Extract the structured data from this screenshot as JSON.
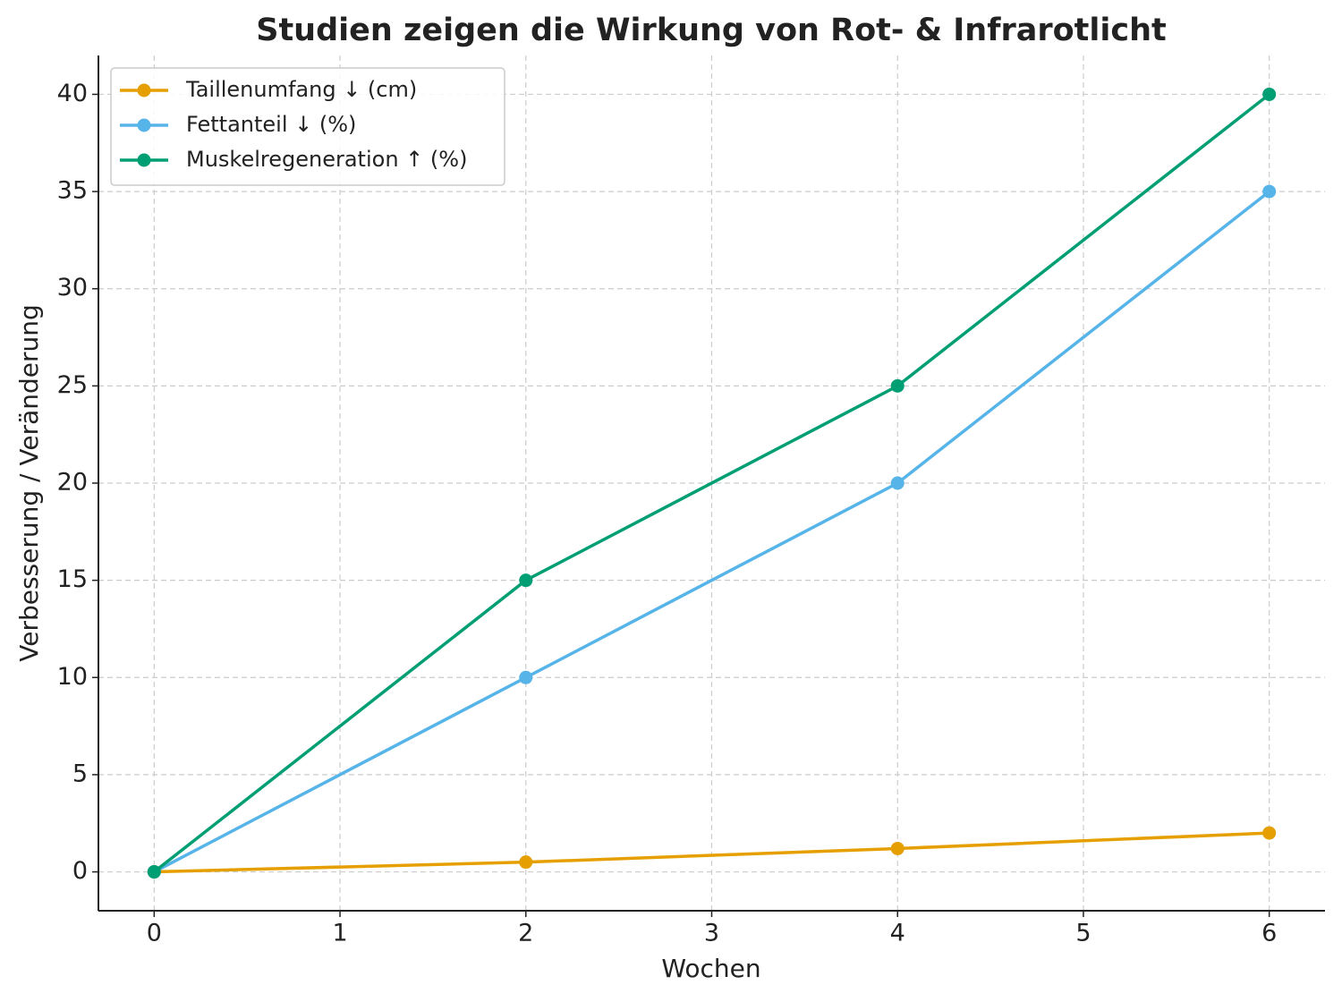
{
  "chart_data": {
    "type": "line",
    "title": "Studien zeigen die Wirkung von Rot- & Infrarotlicht",
    "x_label": "Wochen",
    "y_label": "Verbesserung / Veränderung",
    "x": [
      0,
      2,
      4,
      6
    ],
    "series": [
      {
        "name": "Taillenumfang ↓ (cm)",
        "color": "#E69F00",
        "values": [
          0,
          0.5,
          1.2,
          2
        ]
      },
      {
        "name": "Fettanteil ↓ (%)",
        "color": "#56B4E9",
        "values": [
          0,
          10,
          20,
          35
        ]
      },
      {
        "name": "Muskelregeneration ↑ (%)",
        "color": "#009E73",
        "values": [
          0,
          15,
          25,
          40
        ]
      }
    ],
    "xlim": [
      -0.3,
      6.3
    ],
    "xticks": [
      0,
      1,
      2,
      3,
      4,
      5,
      6
    ],
    "ylim": [
      -2,
      42
    ],
    "yticks": [
      0,
      5,
      10,
      15,
      20,
      25,
      30,
      35,
      40
    ],
    "grid": true,
    "legend": "upper-left"
  }
}
